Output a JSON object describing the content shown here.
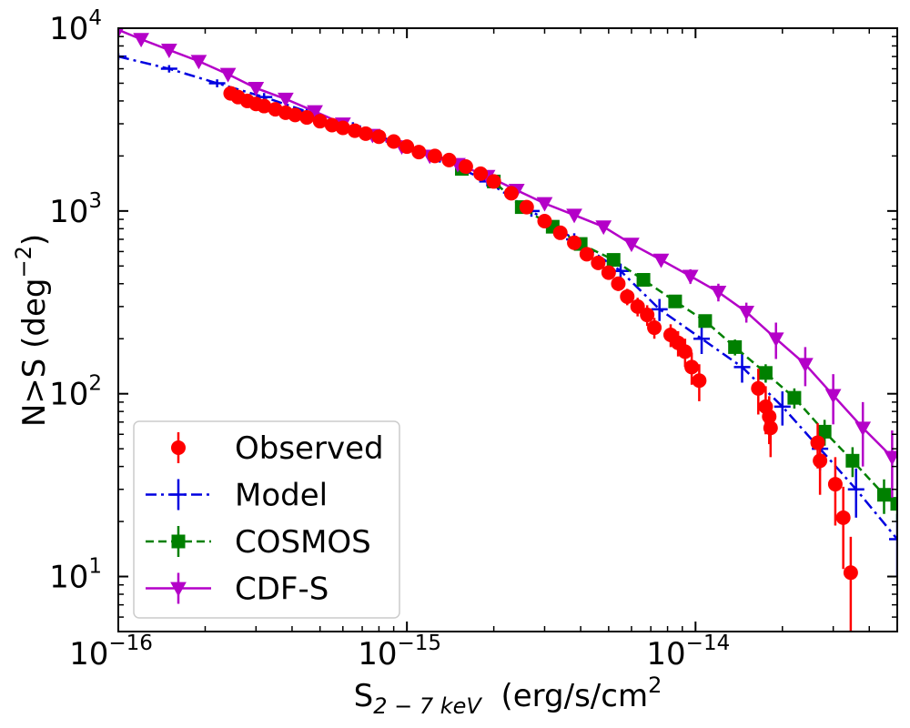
{
  "chart_data": {
    "type": "scatter",
    "title": "",
    "xlabel": {
      "base": "S",
      "sub": "2 − 7 keV",
      "unit": "  (erg/s/cm",
      "unit_sup": "2",
      "unit_close": ")"
    },
    "ylabel": {
      "text": "N>S (deg",
      "sup": "−2",
      "close": ")"
    },
    "xscale": "log",
    "yscale": "log",
    "xlim": [
      1e-16,
      5e-14
    ],
    "ylim": [
      5,
      10000
    ],
    "x_ticks": [
      {
        "value": 1e-16,
        "base": "10",
        "exp": "−16"
      },
      {
        "value": 1e-15,
        "base": "10",
        "exp": "−15"
      },
      {
        "value": 1e-14,
        "base": "10",
        "exp": "−14"
      }
    ],
    "y_ticks": [
      {
        "value": 10,
        "base": "10",
        "exp": "1"
      },
      {
        "value": 100,
        "base": "10",
        "exp": "2"
      },
      {
        "value": 1000,
        "base": "10",
        "exp": "3"
      },
      {
        "value": 10000,
        "base": "10",
        "exp": "4"
      }
    ],
    "legend_position": "lower-left",
    "series": [
      {
        "name": "Observed",
        "color": "#ff0000",
        "marker": "circle",
        "line": "none",
        "x": [
          2.45e-16,
          2.6e-16,
          2.8e-16,
          3e-16,
          3.2e-16,
          3.5e-16,
          3.8e-16,
          4.1e-16,
          4.5e-16,
          5e-16,
          5.5e-16,
          6e-16,
          6.6e-16,
          7.2e-16,
          8e-16,
          9e-16,
          1e-15,
          1.1e-15,
          1.25e-15,
          1.4e-15,
          1.6e-15,
          1.8e-15,
          2e-15,
          2.3e-15,
          2.6e-15,
          3e-15,
          3.4e-15,
          3.8e-15,
          4.2e-15,
          4.6e-15,
          5e-15,
          5.4e-15,
          5.8e-15,
          6.3e-15,
          6.8e-15,
          7.2e-15,
          8.2e-15,
          8.7e-15,
          9.2e-15,
          9.7e-15,
          1.03e-14,
          1.65e-14,
          1.75e-14,
          1.8e-14,
          1.82e-14,
          2.65e-14,
          2.7e-14,
          3.05e-14,
          3.25e-14,
          3.45e-14
        ],
        "y": [
          4400,
          4200,
          4000,
          3850,
          3750,
          3600,
          3450,
          3350,
          3250,
          3100,
          2950,
          2850,
          2750,
          2650,
          2550,
          2400,
          2250,
          2100,
          2000,
          1900,
          1750,
          1600,
          1450,
          1250,
          1050,
          880,
          760,
          670,
          580,
          520,
          460,
          400,
          340,
          300,
          270,
          230,
          210,
          190,
          170,
          140,
          118,
          107,
          85,
          75,
          65,
          54,
          43,
          32,
          21,
          10.5
        ],
        "yerr_upper": [
          250,
          230,
          210,
          200,
          190,
          180,
          170,
          160,
          150,
          140,
          130,
          130,
          120,
          120,
          110,
          100,
          100,
          90,
          90,
          80,
          80,
          70,
          70,
          60,
          60,
          55,
          50,
          45,
          40,
          38,
          35,
          35,
          35,
          35,
          35,
          30,
          30,
          30,
          30,
          28,
          27,
          30,
          25,
          22,
          20,
          15,
          15,
          13,
          10,
          6
        ],
        "yerr_lower": [
          250,
          230,
          210,
          200,
          190,
          180,
          170,
          160,
          150,
          140,
          130,
          130,
          120,
          120,
          110,
          100,
          100,
          90,
          90,
          80,
          80,
          70,
          70,
          60,
          60,
          55,
          50,
          45,
          40,
          38,
          35,
          35,
          35,
          35,
          35,
          30,
          30,
          30,
          30,
          28,
          27,
          30,
          25,
          22,
          20,
          15,
          15,
          13,
          10,
          6
        ]
      },
      {
        "name": "Model",
        "color": "#0000e0",
        "marker": "plus",
        "line": "dashdot",
        "x": [
          1e-16,
          1.5e-16,
          2.2e-16,
          3.2e-16,
          4.5e-16,
          6.5e-16,
          9e-16,
          1.3e-15,
          1.9e-15,
          2.7e-15,
          3.8e-15,
          5.5e-15,
          7.5e-15,
          1.05e-14,
          1.45e-14,
          2e-14,
          2.7e-14,
          3.6e-14,
          5e-14
        ],
        "y": [
          7000,
          6000,
          5000,
          4200,
          3500,
          2900,
          2400,
          1950,
          1450,
          1000,
          700,
          470,
          290,
          200,
          140,
          85,
          50,
          30,
          16
        ],
        "yerr_upper": [
          300,
          280,
          250,
          220,
          190,
          160,
          130,
          110,
          90,
          70,
          55,
          45,
          40,
          35,
          25,
          18,
          12,
          9,
          6
        ],
        "yerr_lower": [
          300,
          280,
          250,
          220,
          190,
          160,
          130,
          110,
          90,
          70,
          55,
          45,
          40,
          35,
          25,
          18,
          12,
          9,
          6
        ]
      },
      {
        "name": "COSMOS",
        "color": "#008000",
        "marker": "square",
        "line": "dashed",
        "x": [
          1.55e-15,
          2e-15,
          2.5e-15,
          3.2e-15,
          4e-15,
          5.2e-15,
          6.6e-15,
          8.5e-15,
          1.08e-14,
          1.37e-14,
          1.75e-14,
          2.2e-14,
          2.8e-14,
          3.5e-14,
          4.5e-14,
          5e-14
        ],
        "y": [
          1700,
          1450,
          1050,
          820,
          660,
          540,
          420,
          320,
          250,
          180,
          130,
          95,
          62,
          43,
          28,
          25
        ],
        "yerr_upper": [
          60,
          55,
          45,
          40,
          35,
          30,
          28,
          25,
          20,
          18,
          15,
          12,
          10,
          8,
          6,
          5
        ],
        "yerr_lower": [
          60,
          55,
          45,
          40,
          35,
          30,
          28,
          25,
          20,
          18,
          15,
          12,
          10,
          8,
          6,
          5
        ]
      },
      {
        "name": "CDF-S",
        "color": "#b400c8",
        "marker": "triangle-down",
        "line": "solid",
        "x": [
          1e-16,
          1.2e-16,
          1.5e-16,
          1.9e-16,
          2.4e-16,
          3e-16,
          3.8e-16,
          4.8e-16,
          6e-16,
          7.6e-16,
          9.6e-16,
          1.2e-15,
          1.5e-15,
          1.9e-15,
          2.4e-15,
          3e-15,
          3.8e-15,
          4.8e-15,
          6e-15,
          7.6e-15,
          9.6e-15,
          1.2e-14,
          1.5e-14,
          1.9e-14,
          2.4e-14,
          3e-14,
          3.8e-14,
          4.8e-14
        ],
        "y": [
          9800,
          8700,
          7600,
          6600,
          5600,
          4700,
          4100,
          3500,
          3000,
          2600,
          2250,
          2000,
          1800,
          1550,
          1300,
          1100,
          950,
          820,
          660,
          540,
          440,
          360,
          280,
          200,
          145,
          98,
          65,
          45
        ],
        "yerr_upper": [
          400,
          350,
          300,
          260,
          220,
          190,
          160,
          140,
          120,
          100,
          90,
          80,
          70,
          65,
          60,
          55,
          50,
          50,
          45,
          40,
          40,
          40,
          35,
          45,
          35,
          30,
          25,
          18
        ],
        "yerr_lower": [
          400,
          350,
          300,
          260,
          220,
          190,
          160,
          140,
          120,
          100,
          90,
          80,
          70,
          65,
          60,
          55,
          50,
          50,
          45,
          40,
          40,
          40,
          35,
          45,
          35,
          30,
          25,
          18
        ]
      }
    ]
  }
}
